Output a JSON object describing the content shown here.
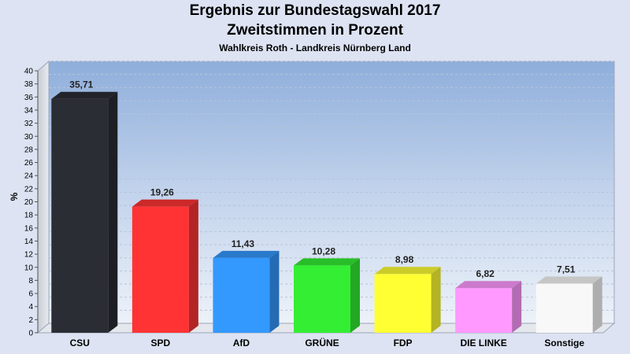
{
  "chart_data": {
    "type": "bar",
    "title": "Ergebnis zur Bundestagswahl 2017",
    "subtitle": "Zweitstimmen in Prozent",
    "caption": "Wahlkreis Roth - Landkreis Nürnberg Land",
    "ylabel": "%",
    "xlabel": "",
    "ylim": [
      0,
      40
    ],
    "ytick_step": 2,
    "grid": true,
    "legend": "none",
    "categories": [
      "CSU",
      "SPD",
      "AfD",
      "GRÜNE",
      "FDP",
      "DIE LINKE",
      "Sonstige"
    ],
    "values": [
      35.71,
      19.26,
      11.43,
      10.28,
      8.98,
      6.82,
      7.51
    ],
    "value_labels": [
      "35,71",
      "19,26",
      "11,43",
      "10,28",
      "8,98",
      "6,82",
      "7,51"
    ],
    "colors": [
      "#2a2d33",
      "#ff3333",
      "#3399ff",
      "#33ee33",
      "#ffff33",
      "#ff99ff",
      "#f8f8f8"
    ]
  }
}
